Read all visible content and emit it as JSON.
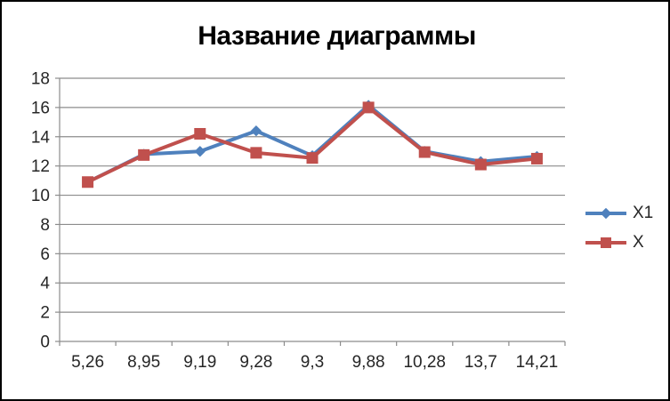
{
  "frame": {
    "background": "#ffffff",
    "border_color": "#000000"
  },
  "chart_data": {
    "type": "line",
    "title": "Название диаграммы",
    "categories": [
      "5,26",
      "8,95",
      "9,19",
      "9,28",
      "9,3",
      "9,88",
      "10,28",
      "13,7",
      "14,21"
    ],
    "series": [
      {
        "name": "X1",
        "color": "#4F81BD",
        "marker": "diamond",
        "values": [
          10.9,
          12.8,
          13.0,
          14.4,
          12.7,
          16.15,
          13.0,
          12.3,
          12.65
        ]
      },
      {
        "name": "X",
        "color": "#C0504D",
        "marker": "square",
        "values": [
          10.9,
          12.75,
          14.2,
          12.9,
          12.55,
          16.0,
          12.95,
          12.1,
          12.5
        ]
      }
    ],
    "xlabel": "",
    "ylabel": "",
    "ylim": [
      0,
      18
    ],
    "ystep": 2,
    "yticks": [
      0,
      2,
      4,
      6,
      8,
      10,
      12,
      14,
      16,
      18
    ],
    "grid": true,
    "legend_position": "right",
    "gridline_color": "#8C8C8C",
    "axis_color": "#8C8C8C",
    "label_color": "#262626"
  }
}
